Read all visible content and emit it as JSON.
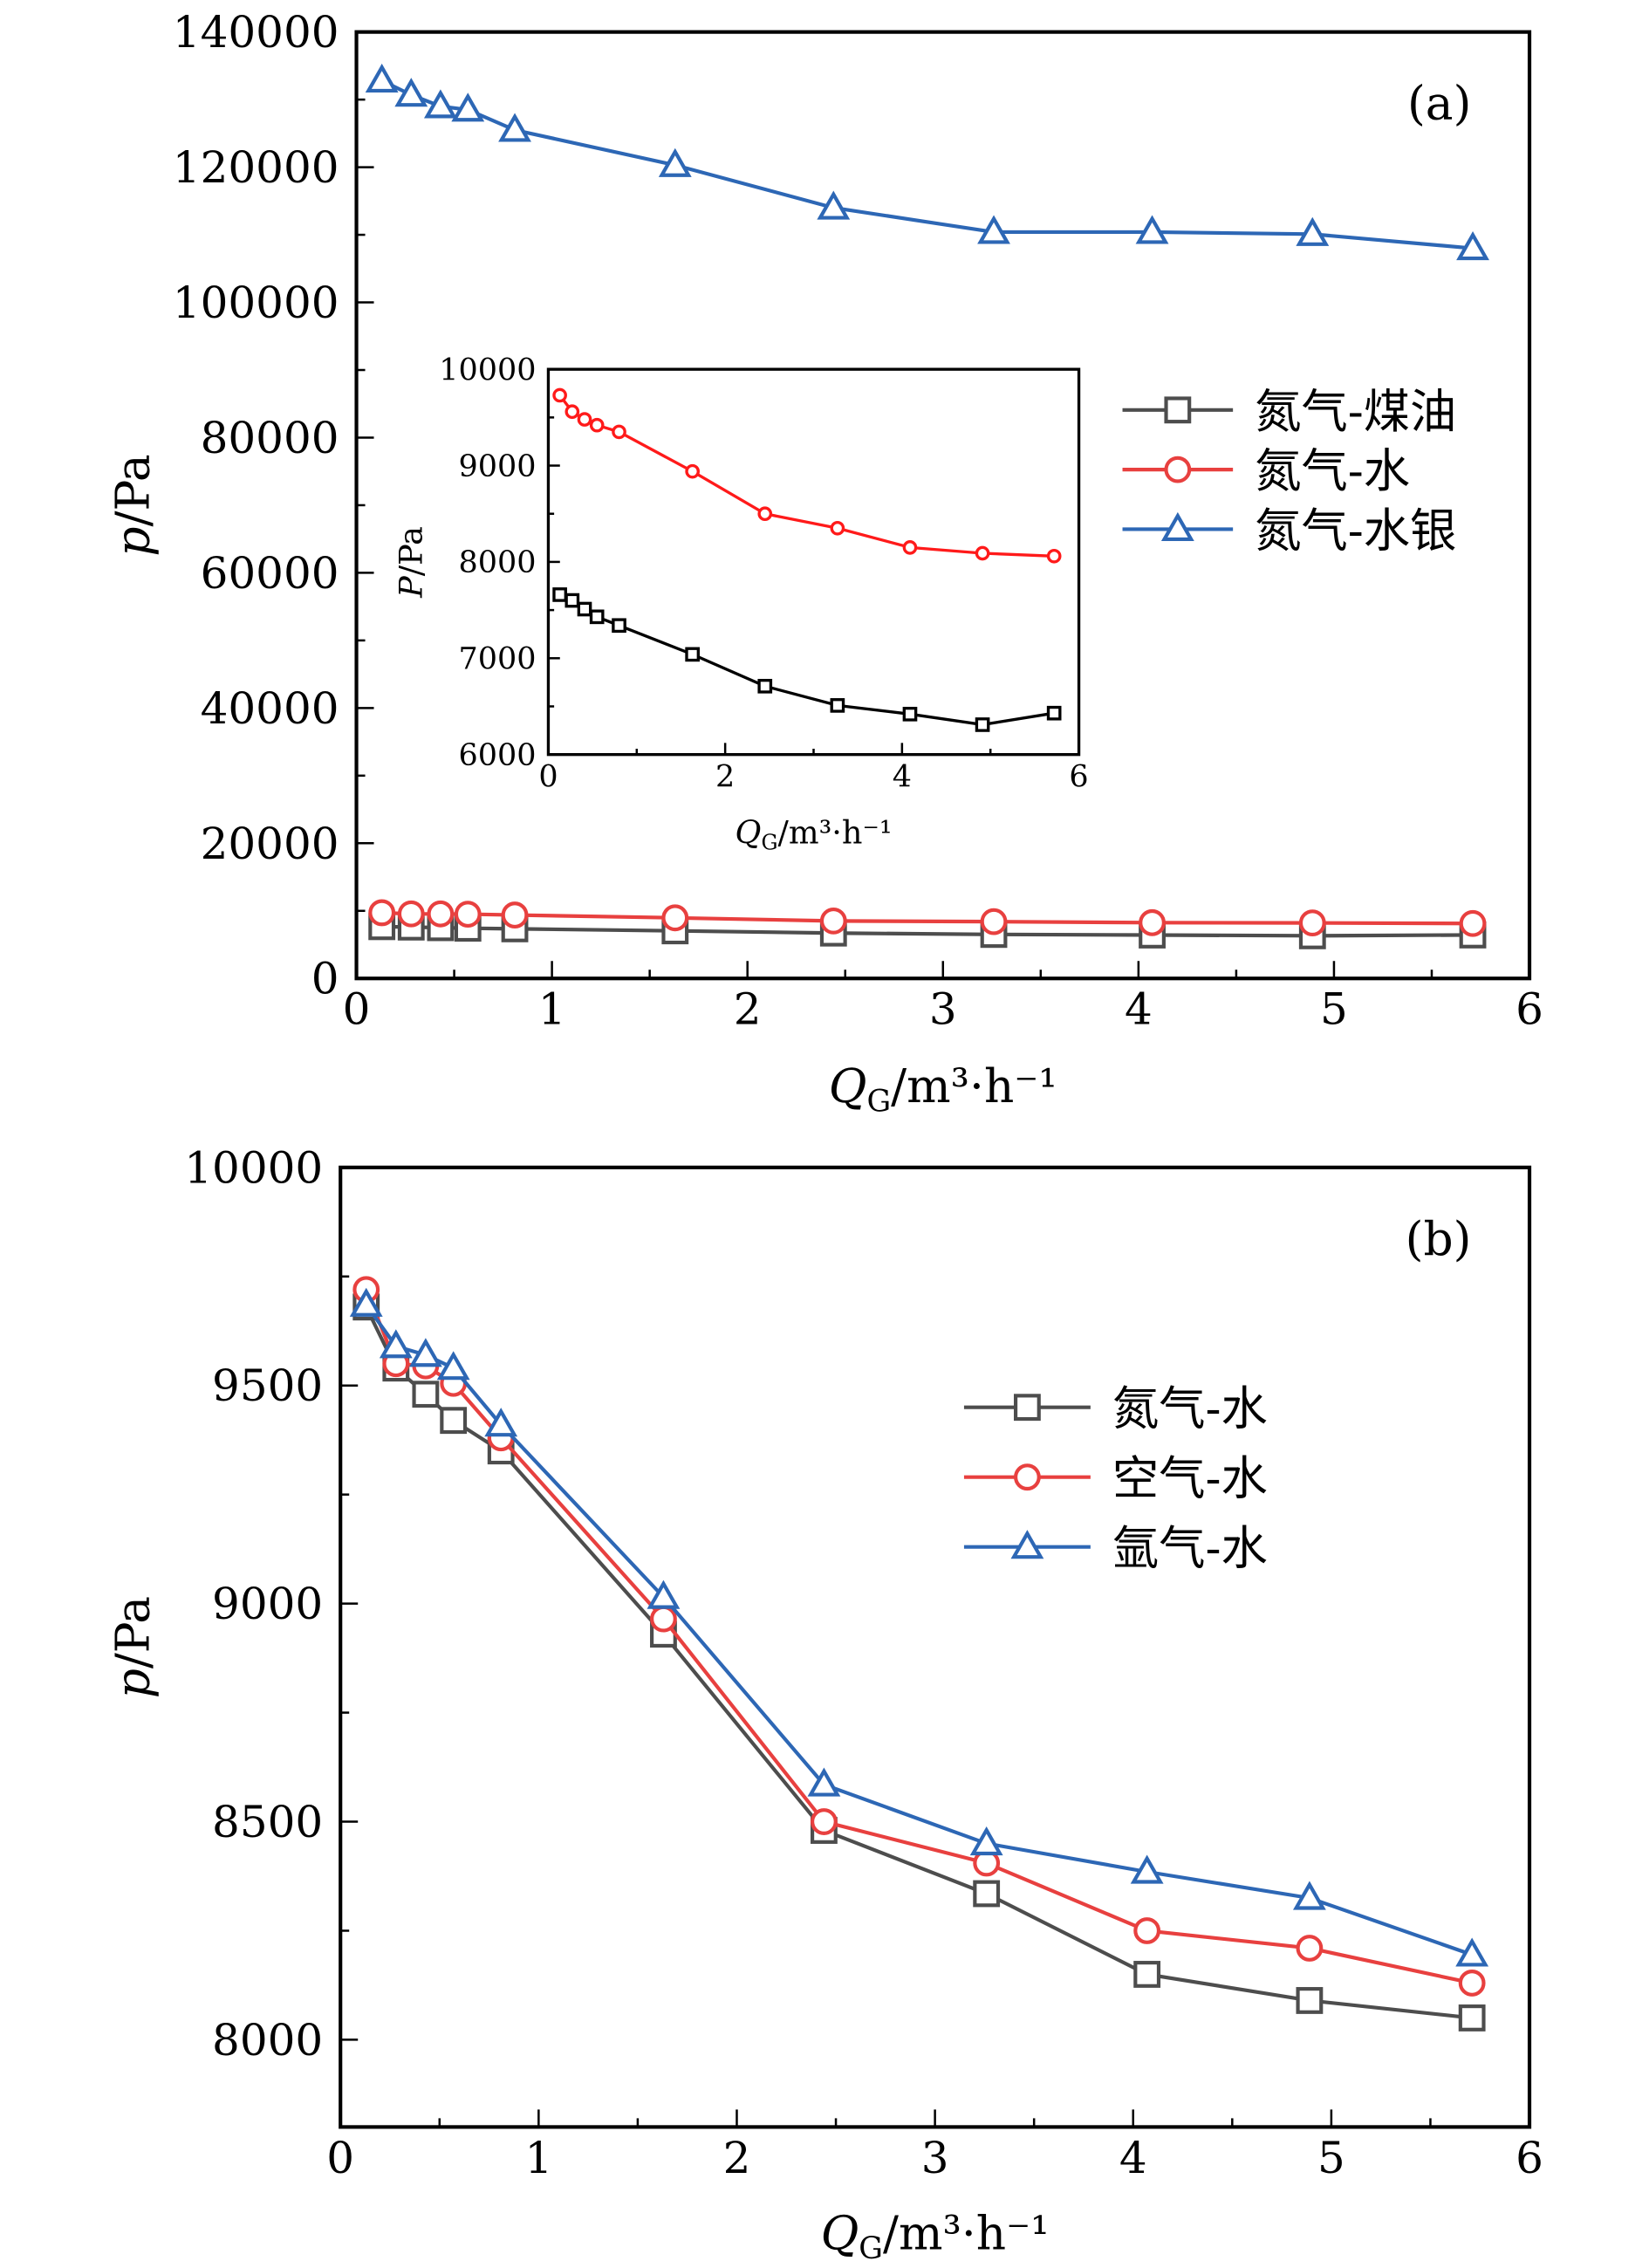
{
  "chart_data": [
    {
      "panel_label": "(a)",
      "type": "line",
      "xlabel": {
        "var": "Q",
        "sub": "G",
        "unit": "/m³·h⁻¹"
      },
      "ylabel": {
        "var": "p",
        "unit": "/Pa"
      },
      "xlim": [
        0,
        6
      ],
      "ylim": [
        0,
        140000
      ],
      "xticks": [
        0,
        1,
        2,
        3,
        4,
        5,
        6
      ],
      "yticks": [
        0,
        20000,
        40000,
        60000,
        80000,
        100000,
        120000,
        140000
      ],
      "grid": false,
      "legend_placement": "right",
      "x": [
        0.13,
        0.28,
        0.43,
        0.57,
        0.81,
        1.63,
        2.44,
        3.26,
        4.07,
        4.89,
        5.71
      ],
      "series": [
        {
          "name": "氮气-煤油",
          "marker": "square",
          "color": "#4d4d4d",
          "values": [
            7660,
            7600,
            7510,
            7430,
            7340,
            7040,
            6710,
            6510,
            6420,
            6310,
            6430
          ]
        },
        {
          "name": "氮气-水",
          "marker": "circle",
          "color": "#e8403f",
          "values": [
            9720,
            9550,
            9545,
            9505,
            9380,
            8965,
            8500,
            8405,
            8250,
            8210,
            8130
          ]
        },
        {
          "name": "氮气-水银",
          "marker": "triangle",
          "color": "#2d67b5",
          "values": [
            132800,
            130700,
            129000,
            128500,
            125500,
            120300,
            114000,
            110400,
            110400,
            110100,
            108000
          ]
        }
      ],
      "inset": {
        "type": "line",
        "xlabel": {
          "var": "Q",
          "sub": "G",
          "unit": "/m³·h⁻¹"
        },
        "ylabel": {
          "var": "P",
          "unit": "/Pa"
        },
        "xlim": [
          0,
          6
        ],
        "ylim": [
          6000,
          10000
        ],
        "xticks": [
          0,
          2,
          4,
          6
        ],
        "yticks": [
          6000,
          7000,
          8000,
          9000,
          10000
        ],
        "x": [
          0.13,
          0.27,
          0.41,
          0.55,
          0.8,
          1.63,
          2.45,
          3.27,
          4.09,
          4.91,
          5.72
        ],
        "series": [
          {
            "marker": "square",
            "color": "#000000",
            "values": [
              7660,
              7600,
              7510,
              7430,
              7340,
              7040,
              6710,
              6510,
              6420,
              6310,
              6430
            ]
          },
          {
            "marker": "circle",
            "color": "#ff1a1a",
            "values": [
              9730,
              9560,
              9480,
              9420,
              9350,
              8940,
              8500,
              8350,
              8150,
              8090,
              8060
            ]
          }
        ]
      }
    },
    {
      "panel_label": "(b)",
      "type": "line",
      "xlabel": {
        "var": "Q",
        "sub": "G",
        "unit": "/m³·h⁻¹"
      },
      "ylabel": {
        "var": "p",
        "unit": "/Pa"
      },
      "xlim": [
        0,
        6
      ],
      "ylim": [
        7800,
        10000
      ],
      "xticks": [
        0,
        1,
        2,
        3,
        4,
        5,
        6
      ],
      "yticks": [
        8000,
        8500,
        9000,
        9500,
        10000
      ],
      "grid": false,
      "legend_placement": "upper-right",
      "x": [
        0.13,
        0.28,
        0.43,
        0.57,
        0.81,
        1.63,
        2.44,
        3.26,
        4.07,
        4.89,
        5.71
      ],
      "series": [
        {
          "name": "氮气-水",
          "marker": "square",
          "color": "#4d4d4d",
          "values": [
            9680,
            9540,
            9480,
            9420,
            9350,
            8930,
            8480,
            8335,
            8150,
            8090,
            8050
          ]
        },
        {
          "name": "空气-水",
          "marker": "circle",
          "color": "#e8403f",
          "values": [
            9720,
            9550,
            9545,
            9505,
            9380,
            8965,
            8500,
            8405,
            8250,
            8210,
            8130
          ]
        },
        {
          "name": "氩气-水",
          "marker": "triangle",
          "color": "#2d67b5",
          "values": [
            9685,
            9590,
            9570,
            9540,
            9410,
            9015,
            8585,
            8450,
            8385,
            8325,
            8195
          ]
        }
      ]
    }
  ]
}
